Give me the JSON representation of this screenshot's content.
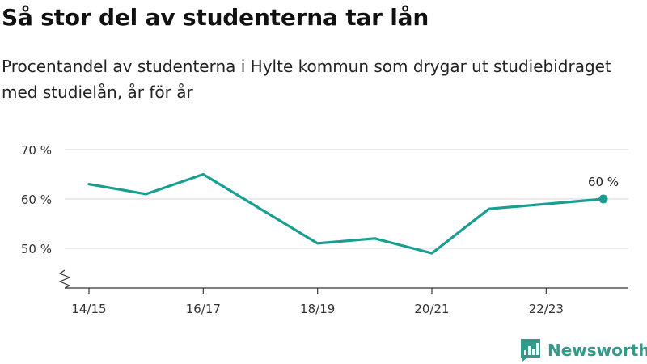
{
  "title": "Så stor del av studenterna tar lån",
  "subtitle": "Procentandel av studenterna i Hylte kommun som drygar ut studiebidraget med studielån, år för år",
  "brand": {
    "name": "Newsworthy"
  },
  "colors": {
    "line": "#1a9e92",
    "grid": "#dddddd",
    "axis": "#333333",
    "brand": "#33998a"
  },
  "chart_data": {
    "type": "line",
    "categories": [
      "14/15",
      "15/16",
      "16/17",
      "17/18",
      "18/19",
      "19/20",
      "20/21",
      "21/22",
      "22/23",
      "23/24"
    ],
    "tick_labels": [
      "14/15",
      "16/17",
      "18/19",
      "20/21",
      "22/23"
    ],
    "values": [
      63,
      61,
      65,
      58,
      51,
      52,
      49,
      58,
      59,
      60
    ],
    "ylim": [
      40,
      70
    ],
    "yticks": [
      50,
      60,
      70
    ],
    "ytick_labels": [
      "50 %",
      "60 %",
      "70 %"
    ],
    "y_axis_break": true,
    "grid": true,
    "annotation": {
      "category": "23/24",
      "value": 60,
      "label": "60 %"
    }
  }
}
